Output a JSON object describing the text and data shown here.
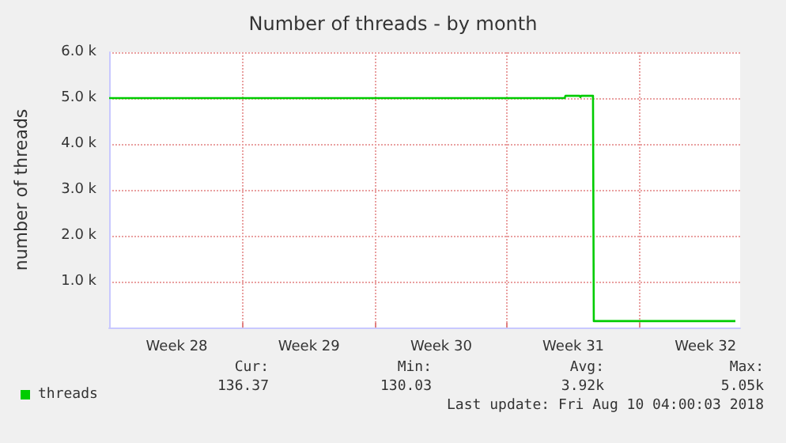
{
  "chart_data": {
    "type": "line",
    "title": "Number of threads - by month",
    "ylabel": "number of threads",
    "x": [
      "2018-07-08T22:00",
      "2018-08-02T01:00",
      "2018-08-02T02:00",
      "2018-08-02T20:00",
      "2018-08-02T21:00",
      "2018-08-02T22:00",
      "2018-08-03T13:00",
      "2018-08-03T14:00",
      "2018-08-11T02:00"
    ],
    "series": [
      {
        "name": "threads",
        "color": "#00cc00",
        "values": [
          5000,
          5000,
          5050,
          5050,
          5020,
          5050,
          5050,
          140,
          140
        ]
      }
    ],
    "xlim": [
      "2018-07-08T22:00",
      "2018-08-11T08:00"
    ],
    "xticks": [
      {
        "value": "2018-07-12T12:00",
        "label": "Week 28"
      },
      {
        "value": "2018-07-16T00:00",
        "label": null
      },
      {
        "value": "2018-07-19T12:00",
        "label": "Week 29"
      },
      {
        "value": "2018-07-23T00:00",
        "label": null
      },
      {
        "value": "2018-07-26T12:00",
        "label": "Week 30"
      },
      {
        "value": "2018-07-30T00:00",
        "label": null
      },
      {
        "value": "2018-08-02T12:00",
        "label": "Week 31"
      },
      {
        "value": "2018-08-06T00:00",
        "label": null
      },
      {
        "value": "2018-08-09T12:00",
        "label": "Week 32"
      }
    ],
    "ylim": [
      0,
      6000
    ],
    "yticks": [
      {
        "value": 1000,
        "label": "1.0 k"
      },
      {
        "value": 2000,
        "label": "2.0 k"
      },
      {
        "value": 3000,
        "label": "3.0 k"
      },
      {
        "value": 4000,
        "label": "4.0 k"
      },
      {
        "value": 5000,
        "label": "5.0 k"
      },
      {
        "value": 6000,
        "label": "6.0 k"
      }
    ],
    "grid": true,
    "legend": "bottom left",
    "marker": "none",
    "line_style": "solid",
    "annotations": [
      "Cur:",
      "Min:",
      "Avg:",
      "Max:",
      "136.37",
      "130.03",
      "3.92k",
      "5.05k",
      "Last update: Fri Aug 10 04:00:03 2018"
    ]
  }
}
